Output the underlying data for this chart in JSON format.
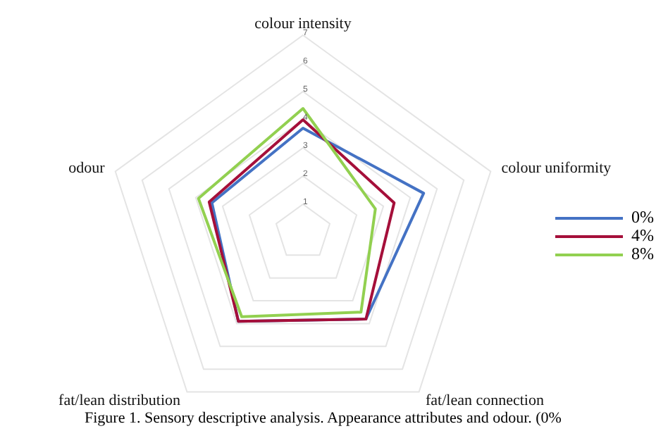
{
  "chart_data": {
    "type": "radar",
    "categories": [
      "colour intensity",
      "colour uniformity",
      "fat/lean connection",
      "fat/lean distribution",
      "odour"
    ],
    "series": [
      {
        "name": "0%",
        "color": "#4472c4",
        "values": [
          3.7,
          4.5,
          3.8,
          3.9,
          3.4
        ]
      },
      {
        "name": "4%",
        "color": "#a50f3a",
        "values": [
          4.0,
          3.4,
          3.8,
          3.9,
          3.5
        ]
      },
      {
        "name": "8%",
        "color": "#92d050",
        "values": [
          4.4,
          2.7,
          3.5,
          3.7,
          3.9
        ]
      }
    ],
    "ylim": [
      0,
      7
    ],
    "yticks": [
      1,
      2,
      3,
      4,
      5,
      6,
      7
    ],
    "grid": true,
    "legend": "right",
    "marker": "none",
    "annotations": [
      "Figure 1. Sensory descriptive analysis. Appearance attributes and odour. (0%"
    ]
  }
}
